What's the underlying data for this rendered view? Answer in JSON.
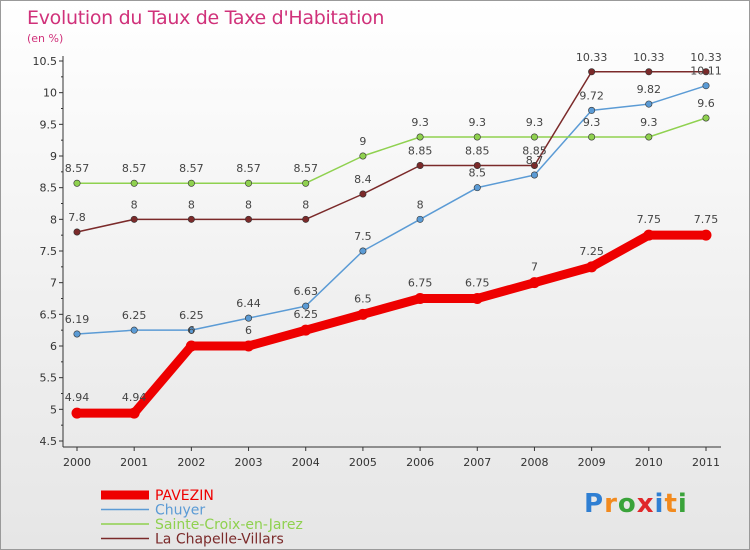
{
  "header": {
    "title": "Evolution du Taux de Taxe d'Habitation",
    "unit": "(en %)"
  },
  "logo": {
    "text": "Proxiti",
    "letter_colors": [
      "#2f7fd3",
      "#f28a1e",
      "#3aa33a",
      "#e0282a",
      "#2f7fd3",
      "#f28a1e",
      "#3aa33a"
    ]
  },
  "chart_data": {
    "type": "line",
    "x": [
      "2000",
      "2001",
      "2002",
      "2003",
      "2004",
      "2005",
      "2006",
      "2007",
      "2008",
      "2009",
      "2010",
      "2011"
    ],
    "ylim": [
      4.5,
      10.5
    ],
    "yticks": [
      "4.5",
      "5",
      "5.5",
      "6",
      "6.5",
      "7",
      "7.5",
      "8",
      "8.5",
      "9",
      "9.5",
      "10",
      "10.5"
    ],
    "grid": false,
    "legend_position": "bottom-left",
    "series": [
      {
        "name": "PAVEZIN",
        "color": "#ee0000",
        "values": [
          4.94,
          4.94,
          6,
          6,
          6.25,
          6.5,
          6.75,
          6.75,
          7,
          7.25,
          7.75,
          7.75
        ],
        "labels": [
          "4.94",
          "4.94",
          "6",
          "6",
          "6.25",
          "6.5",
          "6.75",
          "6.75",
          "7",
          "7.25",
          "7.75",
          "7.75"
        ]
      },
      {
        "name": "Chuyer",
        "color": "#5b9bd5",
        "values": [
          6.19,
          6.25,
          6.25,
          6.44,
          6.63,
          7.5,
          8,
          8.5,
          8.7,
          9.72,
          9.82,
          10.11
        ],
        "labels": [
          "6.19",
          "6.25",
          "6.25",
          "6.44",
          "6.63",
          "7.5",
          "8",
          "8.5",
          "8.7",
          "9.72",
          "9.82",
          "10.11"
        ]
      },
      {
        "name": "Sainte-Croix-en-Jarez",
        "color": "#8fd14f",
        "values": [
          8.57,
          8.57,
          8.57,
          8.57,
          8.57,
          9,
          9.3,
          9.3,
          9.3,
          9.3,
          9.3,
          9.6
        ],
        "labels": [
          "8.57",
          "8.57",
          "8.57",
          "8.57",
          "8.57",
          "9",
          "9.3",
          "9.3",
          "9.3",
          "9.3",
          "9.3",
          "9.6"
        ]
      },
      {
        "name": "La Chapelle-Villars",
        "color": "#7b2a2a",
        "values": [
          7.8,
          8,
          8,
          8,
          8,
          8.4,
          8.85,
          8.85,
          8.85,
          10.33,
          10.33,
          10.33
        ],
        "labels": [
          "7.8",
          "8",
          "8",
          "8",
          "8",
          "8.4",
          "8.85",
          "8.85",
          "8.85",
          "10.33",
          "10.33",
          "10.33"
        ]
      }
    ]
  }
}
